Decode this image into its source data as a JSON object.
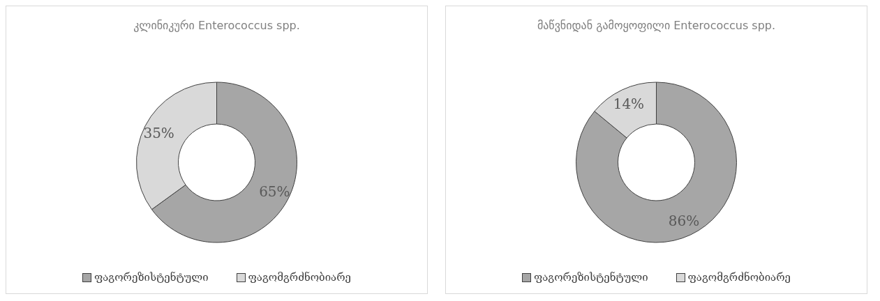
{
  "chart_data": [
    {
      "type": "donut",
      "title": "კლინიკური Enterococcus spp.",
      "categories": [
        "ფაგორეზისტენტული",
        "ფაგომგრძნობიარე"
      ],
      "values": [
        65,
        35
      ],
      "colors": [
        "#a6a6a6",
        "#d9d9d9"
      ],
      "value_labels": [
        "65%",
        "35%"
      ],
      "legend": "bottom"
    },
    {
      "type": "donut",
      "title": "მაწვნიდან გამოყოფილი Enterococcus spp.",
      "categories": [
        "ფაგორეზისტენტული",
        "ფაგომგრძნობიარე"
      ],
      "values": [
        86,
        14
      ],
      "colors": [
        "#a6a6a6",
        "#d9d9d9"
      ],
      "value_labels": [
        "86%",
        "14%"
      ],
      "legend": "bottom"
    }
  ]
}
